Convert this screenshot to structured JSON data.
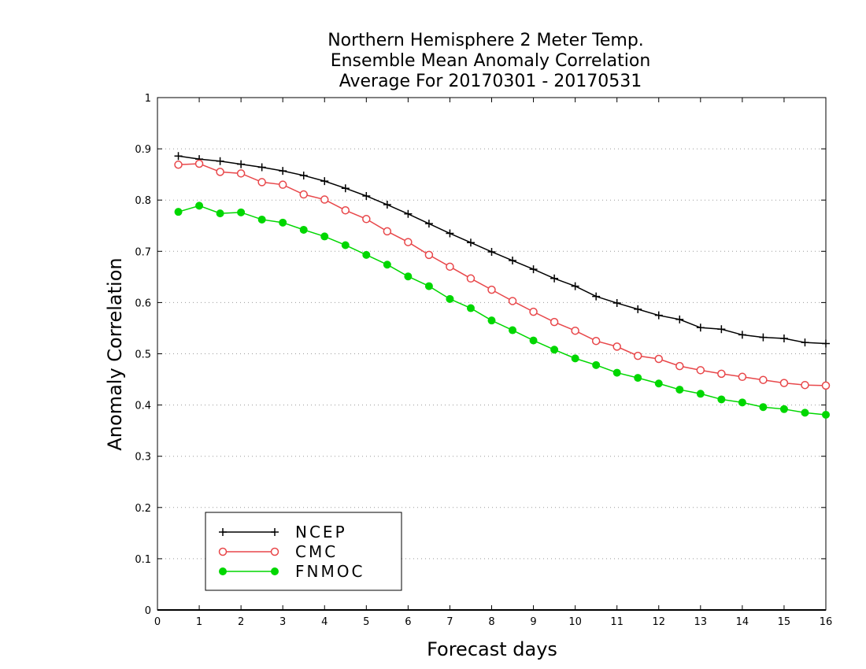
{
  "chart_data": {
    "type": "line",
    "title": [
      "Northern Hemisphere 2 Meter Temp.",
      "Ensemble Mean Anomaly Correlation",
      "Average For 20170301 - 20170531"
    ],
    "xlabel": "Forecast days",
    "ylabel": "Anomaly Correlation",
    "xlim": [
      0,
      16
    ],
    "ylim": [
      0,
      1
    ],
    "xticks": [
      0,
      1,
      2,
      3,
      4,
      5,
      6,
      7,
      8,
      9,
      10,
      11,
      12,
      13,
      14,
      15,
      16
    ],
    "xtick_labels": [
      "0",
      "1",
      "2",
      "3",
      "4",
      "5",
      "6",
      "7",
      "8",
      "9",
      "10",
      "11",
      "12",
      "13",
      "14",
      "15",
      "16"
    ],
    "yticks": [
      0,
      0.1,
      0.2,
      0.3,
      0.4,
      0.5,
      0.6,
      0.7,
      0.8,
      0.9,
      1
    ],
    "ytick_labels": [
      "0",
      "0.1",
      "0.2",
      "0.3",
      "0.4",
      "0.5",
      "0.6",
      "0.7",
      "0.8",
      "0.9",
      "1"
    ],
    "grid": "horizontal-dotted",
    "legend_position": "bottom-left",
    "x": [
      0.5,
      1,
      1.5,
      2,
      2.5,
      3,
      3.5,
      4,
      4.5,
      5,
      5.5,
      6,
      6.5,
      7,
      7.5,
      8,
      8.5,
      9,
      9.5,
      10,
      10.5,
      11,
      11.5,
      12,
      12.5,
      13,
      13.5,
      14,
      14.5,
      15,
      15.5,
      16
    ],
    "series": [
      {
        "name": "NCEP",
        "color": "#000000",
        "marker": "plus",
        "values": [
          0.886,
          0.88,
          0.876,
          0.87,
          0.864,
          0.857,
          0.848,
          0.837,
          0.823,
          0.808,
          0.791,
          0.773,
          0.754,
          0.735,
          0.717,
          0.699,
          0.682,
          0.665,
          0.647,
          0.632,
          0.612,
          0.599,
          0.587,
          0.575,
          0.567,
          0.551,
          0.548,
          0.537,
          0.532,
          0.53,
          0.522,
          0.52
        ]
      },
      {
        "name": "CMC",
        "color": "#e8474a",
        "marker": "open-circle",
        "values": [
          0.869,
          0.871,
          0.855,
          0.852,
          0.835,
          0.83,
          0.811,
          0.801,
          0.78,
          0.763,
          0.739,
          0.718,
          0.693,
          0.67,
          0.647,
          0.625,
          0.603,
          0.582,
          0.562,
          0.545,
          0.525,
          0.514,
          0.496,
          0.49,
          0.476,
          0.468,
          0.461,
          0.455,
          0.449,
          0.443,
          0.439,
          0.438
        ]
      },
      {
        "name": "FNMOC",
        "color": "#00d700",
        "marker": "filled-circle",
        "values": [
          0.777,
          0.789,
          0.774,
          0.776,
          0.762,
          0.756,
          0.742,
          0.729,
          0.712,
          0.693,
          0.674,
          0.651,
          0.632,
          0.607,
          0.589,
          0.565,
          0.546,
          0.526,
          0.508,
          0.491,
          0.478,
          0.463,
          0.453,
          0.442,
          0.43,
          0.422,
          0.411,
          0.405,
          0.396,
          0.392,
          0.385,
          0.381
        ]
      }
    ]
  }
}
